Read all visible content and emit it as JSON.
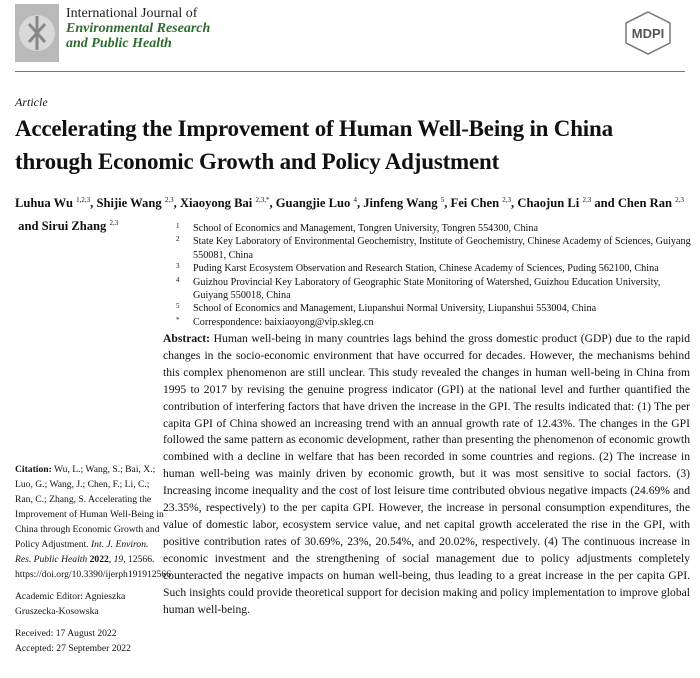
{
  "header": {
    "journal_line1": "International Journal of",
    "journal_line2": "Environmental Research",
    "journal_line3": "and Public Health",
    "publisher": "MDPI",
    "accent_color": "#2e6b2e"
  },
  "article_type": "Article",
  "title": "Accelerating the Improvement of Human Well-Being in China through Economic Growth and Policy Adjustment",
  "authors": [
    {
      "name": "Luhua Wu",
      "aff": "1,2,3",
      "sep": ", "
    },
    {
      "name": "Shijie Wang",
      "aff": "2,3",
      "sep": ", "
    },
    {
      "name": "Xiaoyong Bai",
      "aff": "2,3,*",
      "sep": ", "
    },
    {
      "name": "Guangjie Luo",
      "aff": "4",
      "sep": ", "
    },
    {
      "name": "Jinfeng Wang",
      "aff": "5",
      "sep": ", "
    },
    {
      "name": "Fei Chen",
      "aff": "2,3",
      "sep": ", "
    },
    {
      "name": "Chaojun Li",
      "aff": "2,3",
      "sep": " and "
    },
    {
      "name": "Chen Ran",
      "aff": "2,3",
      "sep": " and "
    },
    {
      "name": "Sirui Zhang",
      "aff": "2,3",
      "sep": ""
    }
  ],
  "affiliations": [
    {
      "n": "1",
      "text": "School of Economics and Management, Tongren University, Tongren 554300, China"
    },
    {
      "n": "2",
      "text": "State Key Laboratory of Environmental Geochemistry, Institute of Geochemistry, Chinese Academy of Sciences, Guiyang 550081, China"
    },
    {
      "n": "3",
      "text": "Puding Karst Ecosystem Observation and Research Station, Chinese Academy of Sciences, Puding 562100, China"
    },
    {
      "n": "4",
      "text": "Guizhou Provincial Key Laboratory of Geographic State Monitoring of Watershed, Guizhou Education University, Guiyang 550018, China"
    },
    {
      "n": "5",
      "text": "School of Economics and Management, Liupanshui Normal University, Liupanshui 553004, China"
    },
    {
      "n": "*",
      "text": "Correspondence: baixiaoyong@vip.skleg.cn"
    }
  ],
  "abstract": {
    "label": "Abstract:",
    "text": "Human well-being in many countries lags behind the gross domestic product (GDP) due to the rapid changes in the socio-economic environment that have occurred for decades. However, the mechanisms behind this complex phenomenon are still unclear. This study revealed the changes in human well-being in China from 1995 to 2017 by revising the genuine progress indicator (GPI) at the national level and further quantified the contribution of interfering factors that have driven the increase in the GPI. The results indicated that: (1) The per capita GPI of China showed an increasing trend with an annual growth rate of 12.43%. The changes in the GPI followed the same pattern as economic development, rather than presenting the phenomenon of economic growth combined with a decline in welfare that has been recorded in some countries and regions. (2) The increase in human well-being was mainly driven by economic growth, but it was most sensitive to social factors. (3) Increasing income inequality and the cost of lost leisure time contributed obvious negative impacts (24.69% and 23.35%, respectively) to the per capita GPI. However, the increase in personal consumption expenditures, the value of domestic labor, ecosystem service value, and net capital growth accelerated the rise in the GPI, with positive contribution rates of 30.69%, 23%, 20.54%, and 20.02%, respectively. (4) The continuous increase in economic investment and the strengthening of social management due to policy adjustments completely counteracted the negative impacts on human well-being, thus leading to a great increase in the per capita GPI. Such insights could provide theoretical support for decision making and policy implementation to improve global human well-being."
  },
  "sidebar": {
    "citation_label": "Citation:",
    "citation_text": "Wu, L.; Wang, S.; Bai, X.; Luo, G.; Wang, J.; Chen, F.; Li, C.; Ran, C.; Zhang, S. Accelerating the Improvement of Human Well-Being in China through Economic Growth and Policy Adjustment.",
    "citation_journal": "Int. J. Environ. Res. Public Health",
    "citation_year": "2022",
    "citation_volume": "19,",
    "citation_rest": "12566. https://doi.org/10.3390/ijerph191912566",
    "editor": "Academic Editor: Agnieszka Gruszecka-Kosowska",
    "received": "Received: 17 August 2022",
    "accepted": "Accepted: 27 September 2022"
  }
}
